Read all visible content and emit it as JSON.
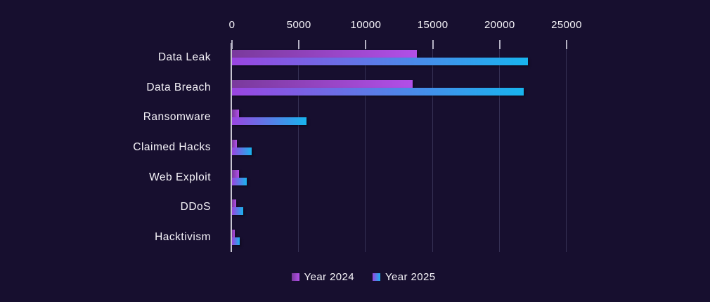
{
  "colors": {
    "background": "#170f2f",
    "text": "#f7f5fa",
    "gridline": "#363155",
    "axis_line": "#c8c6d2",
    "tick_mark": "#b5b2c4",
    "series_2024_gradient": [
      "#7a3a9c",
      "#b24fe8"
    ],
    "series_2025_gradient": [
      "#9a45e0",
      "#18b4ee"
    ]
  },
  "chart_data": {
    "type": "bar",
    "orientation": "horizontal",
    "title": "",
    "categories": [
      "Data Leak",
      "Data Breach",
      "Ransomware",
      "Claimed Hacks",
      "Web Exploit",
      "DDoS",
      "Hacktivism"
    ],
    "series": [
      {
        "name": "Year 2024",
        "values": [
          13800,
          13500,
          500,
          350,
          520,
          320,
          200
        ]
      },
      {
        "name": "Year 2025",
        "values": [
          22100,
          21800,
          5550,
          1480,
          1100,
          850,
          580
        ]
      }
    ],
    "xlim": [
      0,
      25000
    ],
    "x_ticks": [
      0,
      5000,
      10000,
      15000,
      20000,
      25000
    ],
    "x_tick_labels": [
      "0",
      "5000",
      "10000",
      "15000",
      "20000",
      "25000"
    ],
    "axis_position": "top",
    "grid": "vertical",
    "legend_position": "bottom"
  }
}
